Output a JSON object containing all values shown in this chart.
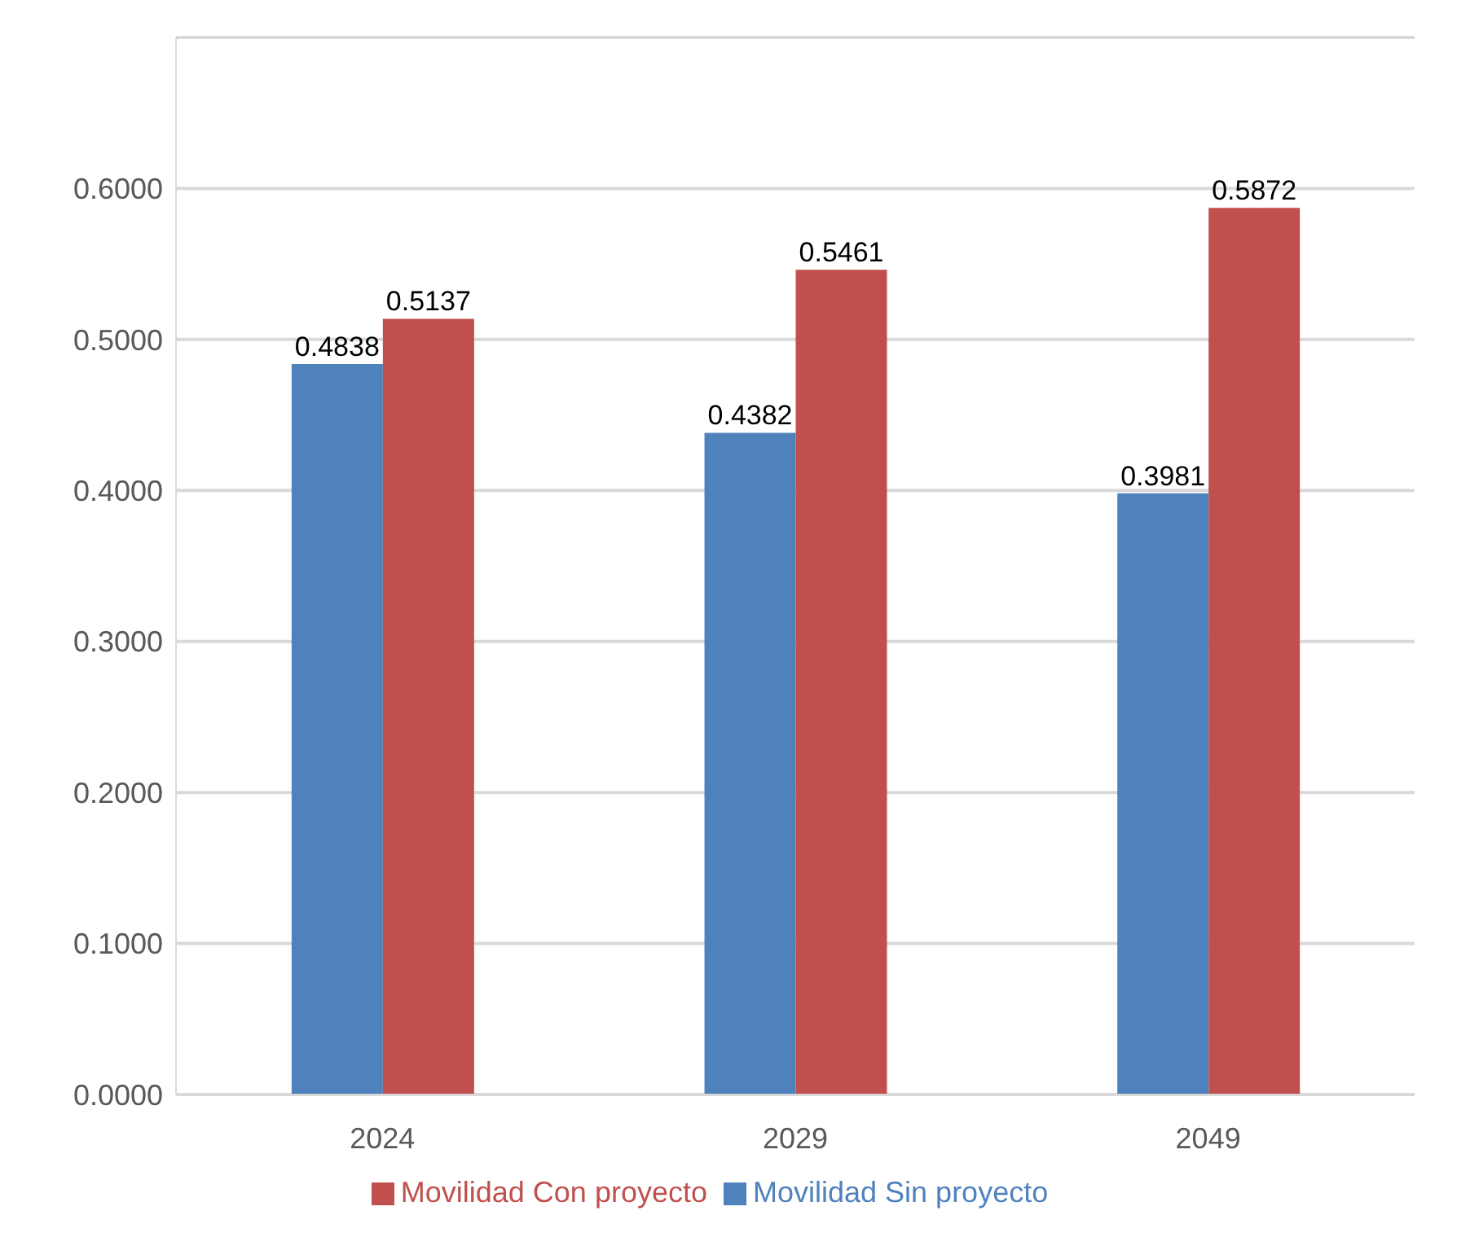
{
  "chart_data": {
    "type": "bar",
    "categories": [
      "2024",
      "2029",
      "2049"
    ],
    "series": [
      {
        "name": "Movilidad Sin proyecto",
        "color": "#4f81bd",
        "values": [
          0.4838,
          0.4382,
          0.3981
        ]
      },
      {
        "name": "Movilidad Con proyecto",
        "color": "#c0504d",
        "values": [
          0.5137,
          0.5461,
          0.5872
        ]
      }
    ],
    "ylim": [
      0,
      0.7
    ],
    "yticks": [
      {
        "value": 0,
        "label": "0.0000"
      },
      {
        "value": 0.1,
        "label": "0.1000"
      },
      {
        "value": 0.2,
        "label": "0.2000"
      },
      {
        "value": 0.3,
        "label": "0.3000"
      },
      {
        "value": 0.4,
        "label": "0.4000"
      },
      {
        "value": 0.5,
        "label": "0.5000"
      },
      {
        "value": 0.6,
        "label": "0.6000"
      },
      {
        "value": 0.7,
        "label": null
      }
    ],
    "grid": "y",
    "legend": "bottom",
    "data_labels": true
  }
}
